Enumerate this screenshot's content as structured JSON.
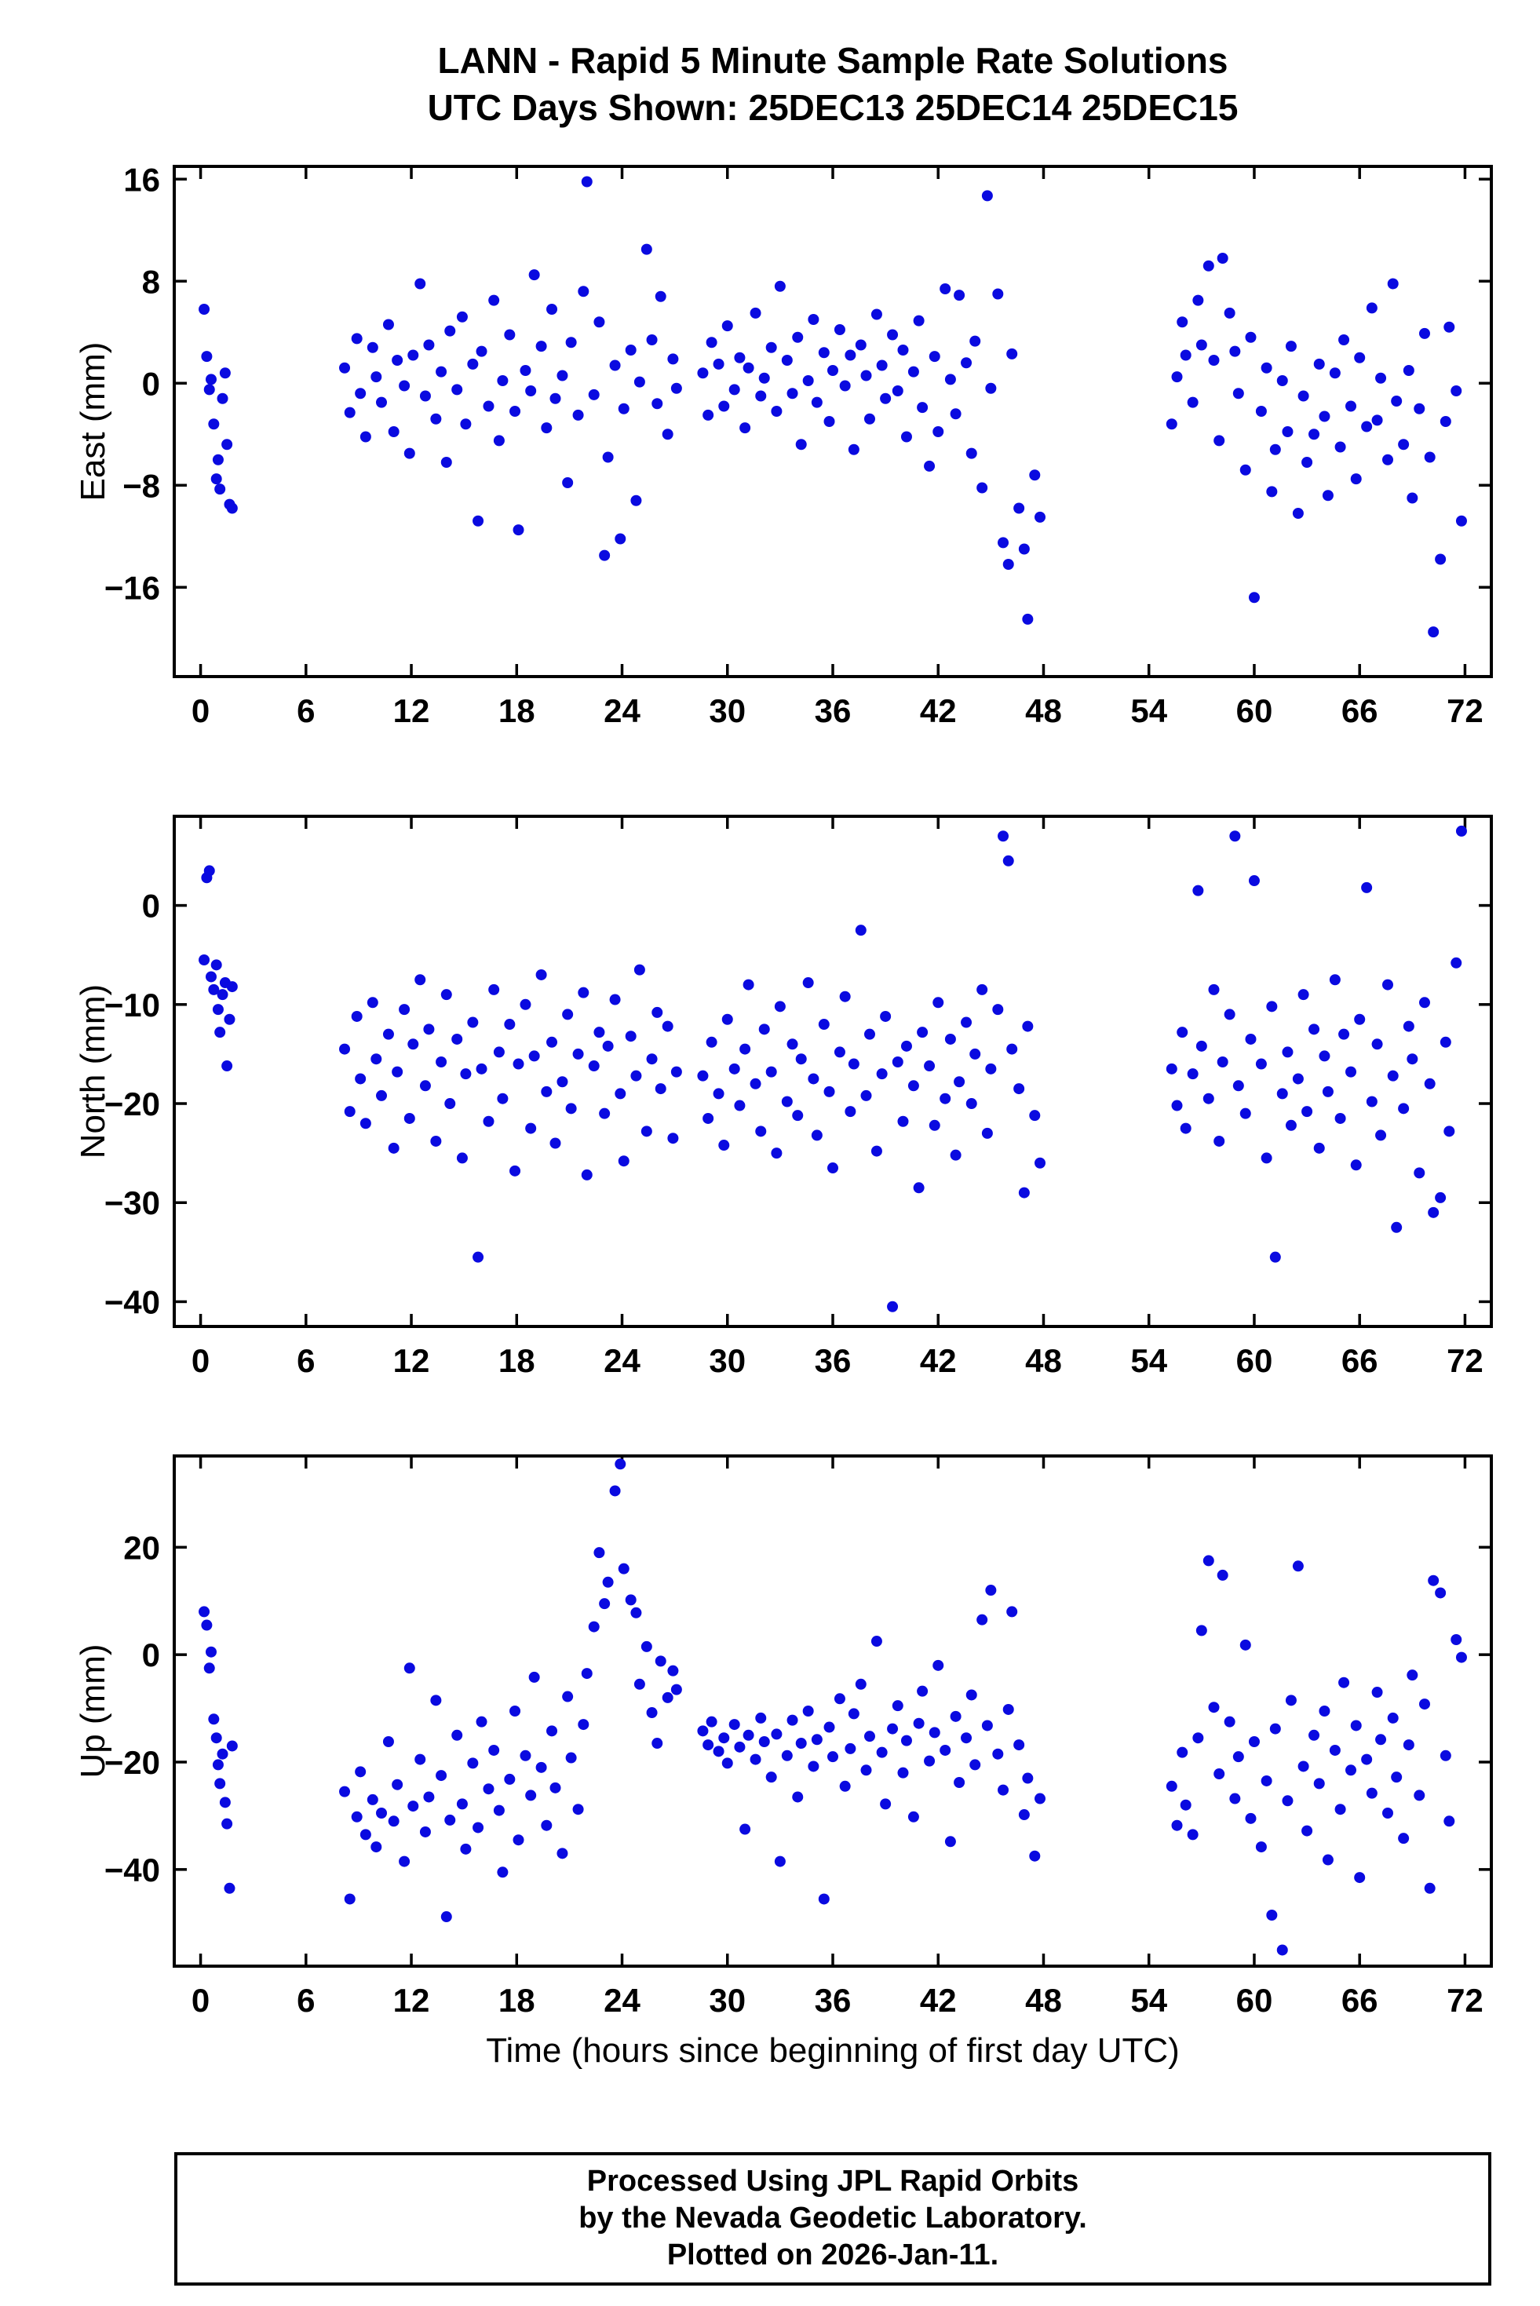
{
  "title": {
    "line1": "LANN - Rapid 5 Minute Sample Rate Solutions",
    "line2": "UTC Days Shown:  25DEC13 25DEC14 25DEC15"
  },
  "xlabel": "Time (hours since beginning of first day UTC)",
  "footer": {
    "line1": "Processed Using JPL Rapid Orbits",
    "line2": "by the Nevada Geodetic Laboratory.",
    "line3": "Plotted on 2026-Jan-11."
  },
  "colors": {
    "points": "#0a0ae0",
    "frame": "#000000",
    "background": "#ffffff"
  },
  "chart_data": {
    "type": "scatter",
    "title": "LANN - Rapid 5 Minute Sample Rate Solutions",
    "subtitle": "UTC Days Shown:  25DEC13 25DEC14 25DEC15",
    "xlabel": "Time (hours since beginning of first day UTC)",
    "xlim": [
      -1.5,
      73.5
    ],
    "xticks": [
      0,
      6,
      12,
      18,
      24,
      30,
      36,
      42,
      48,
      54,
      60,
      66,
      72
    ],
    "grid": false,
    "legend": "none",
    "marker": "circle",
    "x": [
      0.2,
      0.35,
      0.5,
      0.6,
      0.75,
      0.9,
      1.0,
      1.1,
      1.25,
      1.4,
      1.5,
      1.65,
      1.8,
      8.2,
      8.5,
      8.9,
      9.1,
      9.4,
      9.8,
      10.0,
      10.3,
      10.7,
      11.0,
      11.2,
      11.6,
      11.9,
      12.1,
      12.5,
      12.8,
      13.0,
      13.4,
      13.7,
      14.0,
      14.2,
      14.6,
      14.9,
      15.1,
      15.5,
      15.8,
      16.0,
      16.4,
      16.7,
      17.0,
      17.2,
      17.6,
      17.9,
      18.1,
      18.5,
      18.8,
      19.0,
      19.4,
      19.7,
      20.0,
      20.2,
      20.6,
      20.9,
      21.1,
      21.5,
      21.8,
      22.0,
      22.4,
      22.7,
      23.0,
      23.2,
      23.6,
      23.9,
      24.1,
      24.5,
      24.8,
      25.0,
      25.4,
      25.7,
      26.0,
      26.2,
      26.6,
      26.9,
      27.1,
      28.6,
      28.9,
      29.1,
      29.5,
      29.8,
      30.0,
      30.4,
      30.7,
      31.0,
      31.2,
      31.6,
      31.9,
      32.1,
      32.5,
      32.8,
      33.0,
      33.4,
      33.7,
      34.0,
      34.2,
      34.6,
      34.9,
      35.1,
      35.5,
      35.8,
      36.0,
      36.4,
      36.7,
      37.0,
      37.2,
      37.6,
      37.9,
      38.1,
      38.5,
      38.8,
      39.0,
      39.4,
      39.7,
      40.0,
      40.2,
      40.6,
      40.9,
      41.1,
      41.5,
      41.8,
      42.0,
      42.4,
      42.7,
      43.0,
      43.2,
      43.6,
      43.9,
      44.1,
      44.5,
      44.8,
      45.0,
      45.4,
      45.7,
      46.0,
      46.2,
      46.6,
      46.9,
      47.1,
      47.5,
      47.8,
      55.3,
      55.6,
      55.9,
      56.1,
      56.5,
      56.8,
      57.0,
      57.4,
      57.7,
      58.0,
      58.2,
      58.6,
      58.9,
      59.1,
      59.5,
      59.8,
      60.0,
      60.4,
      60.7,
      61.0,
      61.2,
      61.6,
      61.9,
      62.1,
      62.5,
      62.8,
      63.0,
      63.4,
      63.7,
      64.0,
      64.2,
      64.6,
      64.9,
      65.1,
      65.5,
      65.8,
      66.0,
      66.4,
      66.7,
      67.0,
      67.2,
      67.6,
      67.9,
      68.1,
      68.5,
      68.8,
      69.0,
      69.4,
      69.7,
      70.0,
      70.2,
      70.6,
      70.9,
      71.1,
      71.5,
      71.8
    ],
    "series": [
      {
        "name": "East",
        "ylabel": "East (mm)",
        "ylim": [
          -23,
          17
        ],
        "yticks": [
          -16,
          -8,
          0,
          8,
          16
        ],
        "values": [
          5.8,
          2.1,
          -0.5,
          0.3,
          -3.2,
          -7.5,
          -6.0,
          -8.3,
          -1.2,
          0.8,
          -4.8,
          -9.5,
          -9.8,
          1.2,
          -2.3,
          3.5,
          -0.8,
          -4.2,
          2.8,
          0.5,
          -1.5,
          4.6,
          -3.8,
          1.8,
          -0.2,
          -5.5,
          2.2,
          7.8,
          -1.0,
          3.0,
          -2.8,
          0.9,
          -6.2,
          4.1,
          -0.5,
          5.2,
          -3.2,
          1.5,
          -10.8,
          2.5,
          -1.8,
          6.5,
          -4.5,
          0.2,
          3.8,
          -2.2,
          -11.5,
          1.0,
          -0.6,
          8.5,
          2.9,
          -3.5,
          5.8,
          -1.2,
          0.6,
          -7.8,
          3.2,
          -2.5,
          7.2,
          15.8,
          -0.9,
          4.8,
          -13.5,
          -5.8,
          1.4,
          -12.2,
          -2.0,
          2.6,
          -9.2,
          0.1,
          10.5,
          3.4,
          -1.6,
          6.8,
          -4.0,
          1.9,
          -0.4,
          0.8,
          -2.5,
          3.2,
          1.5,
          -1.8,
          4.5,
          -0.5,
          2.0,
          -3.5,
          1.2,
          5.5,
          -1.0,
          0.4,
          2.8,
          -2.2,
          7.6,
          1.8,
          -0.8,
          3.6,
          -4.8,
          0.2,
          5.0,
          -1.5,
          2.4,
          -3.0,
          1.0,
          4.2,
          -0.2,
          2.2,
          -5.2,
          3.0,
          0.6,
          -2.8,
          5.4,
          1.4,
          -1.2,
          3.8,
          -0.6,
          2.6,
          -4.2,
          0.9,
          4.9,
          -1.9,
          -6.5,
          2.1,
          -3.8,
          7.4,
          0.3,
          -2.4,
          6.9,
          1.6,
          -5.5,
          3.3,
          -8.2,
          14.7,
          -0.4,
          7.0,
          -12.5,
          -14.2,
          2.3,
          -9.8,
          -13.0,
          -18.5,
          -7.2,
          -10.5,
          -3.2,
          0.5,
          4.8,
          2.2,
          -1.5,
          6.5,
          3.0,
          9.2,
          1.8,
          -4.5,
          9.8,
          5.5,
          2.5,
          -0.8,
          -6.8,
          3.6,
          -16.8,
          -2.2,
          1.2,
          -8.5,
          -5.2,
          0.2,
          -3.8,
          2.9,
          -10.2,
          -1.0,
          -6.2,
          -4.0,
          1.5,
          -2.6,
          -8.8,
          0.8,
          -5.0,
          3.4,
          -1.8,
          -7.5,
          2.0,
          -3.4,
          5.9,
          -2.9,
          0.4,
          -6.0,
          7.8,
          -1.4,
          -4.8,
          1.0,
          -9.0,
          -2.0,
          3.9,
          -5.8,
          -19.5,
          -13.8,
          -3.0,
          4.4,
          -0.6,
          -10.8
        ]
      },
      {
        "name": "North",
        "ylabel": "North (mm)",
        "ylim": [
          -42.5,
          9
        ],
        "yticks": [
          -40,
          -30,
          -20,
          -10,
          0
        ],
        "values": [
          -5.5,
          2.8,
          3.5,
          -7.2,
          -8.5,
          -6.0,
          -10.5,
          -12.8,
          -9.0,
          -7.8,
          -16.2,
          -11.5,
          -8.2,
          -14.5,
          -20.8,
          -11.2,
          -17.5,
          -22.0,
          -9.8,
          -15.5,
          -19.2,
          -13.0,
          -24.5,
          -16.8,
          -10.5,
          -21.5,
          -14.0,
          -7.5,
          -18.2,
          -12.5,
          -23.8,
          -15.8,
          -9.0,
          -20.0,
          -13.5,
          -25.5,
          -17.0,
          -11.8,
          -35.5,
          -16.5,
          -21.8,
          -8.5,
          -14.8,
          -19.5,
          -12.0,
          -26.8,
          -16.0,
          -10.0,
          -22.5,
          -15.2,
          -7.0,
          -18.8,
          -13.8,
          -24.0,
          -17.8,
          -11.0,
          -20.5,
          -15.0,
          -8.8,
          -27.2,
          -16.2,
          -12.8,
          -21.0,
          -14.2,
          -9.5,
          -19.0,
          -25.8,
          -13.2,
          -17.2,
          -6.5,
          -22.8,
          -15.5,
          -10.8,
          -18.5,
          -12.2,
          -23.5,
          -16.8,
          -17.2,
          -21.5,
          -13.8,
          -19.0,
          -24.2,
          -11.5,
          -16.5,
          -20.2,
          -14.5,
          -8.0,
          -18.0,
          -22.8,
          -12.5,
          -16.8,
          -25.0,
          -10.2,
          -19.8,
          -14.0,
          -21.2,
          -15.5,
          -7.8,
          -17.5,
          -23.2,
          -12.0,
          -18.8,
          -26.5,
          -14.8,
          -9.2,
          -20.8,
          -16.0,
          -2.5,
          -19.2,
          -13.0,
          -24.8,
          -17.0,
          -11.2,
          -40.5,
          -15.8,
          -21.8,
          -14.2,
          -18.2,
          -28.5,
          -12.8,
          -16.2,
          -22.2,
          -9.8,
          -19.5,
          -13.5,
          -25.2,
          -17.8,
          -11.8,
          -20.0,
          -15.0,
          -8.5,
          -23.0,
          -16.5,
          -10.5,
          7.0,
          4.5,
          -14.5,
          -18.5,
          -29.0,
          -12.2,
          -21.2,
          -26.0,
          -16.5,
          -20.2,
          -12.8,
          -22.5,
          -17.0,
          1.5,
          -14.2,
          -19.5,
          -8.5,
          -23.8,
          -15.8,
          -11.0,
          7.0,
          -18.2,
          -21.0,
          -13.5,
          2.5,
          -16.0,
          -25.5,
          -10.2,
          -35.5,
          -19.0,
          -14.8,
          -22.2,
          -17.5,
          -9.0,
          -20.8,
          -12.5,
          -24.5,
          -15.2,
          -18.8,
          -7.5,
          -21.5,
          -13.0,
          -16.8,
          -26.2,
          -11.5,
          1.8,
          -19.8,
          -14.0,
          -23.2,
          -8.0,
          -17.2,
          -32.5,
          -20.5,
          -12.2,
          -15.5,
          -27.0,
          -9.8,
          -18.0,
          -31.0,
          -29.5,
          -13.8,
          -22.8,
          -5.8,
          7.5
        ]
      },
      {
        "name": "Up",
        "ylabel": "Up (mm)",
        "ylim": [
          -58,
          37
        ],
        "yticks": [
          -40,
          -20,
          0,
          20
        ],
        "values": [
          8.0,
          5.5,
          -2.5,
          0.5,
          -12.0,
          -15.5,
          -20.5,
          -24.0,
          -18.5,
          -27.5,
          -31.5,
          -43.5,
          -17.0,
          -25.5,
          -45.5,
          -30.2,
          -21.8,
          -33.5,
          -27.0,
          -35.8,
          -29.5,
          -16.2,
          -31.0,
          -24.2,
          -38.5,
          -2.5,
          -28.2,
          -19.5,
          -33.0,
          -26.5,
          -8.5,
          -22.5,
          -48.8,
          -30.8,
          -15.0,
          -27.8,
          -36.2,
          -20.2,
          -32.2,
          -12.5,
          -25.0,
          -17.8,
          -29.0,
          -40.5,
          -23.2,
          -10.5,
          -34.5,
          -18.8,
          -26.2,
          -4.2,
          -21.0,
          -31.8,
          -14.2,
          -24.8,
          -37.0,
          -7.8,
          -19.2,
          -28.8,
          -13.0,
          -3.5,
          5.2,
          19.0,
          9.5,
          13.5,
          30.5,
          35.5,
          16.0,
          10.2,
          7.8,
          -5.5,
          1.5,
          -10.8,
          -16.5,
          -1.2,
          -8.0,
          -3.0,
          -6.5,
          -14.2,
          -16.8,
          -12.5,
          -18.0,
          -15.5,
          -20.2,
          -13.0,
          -17.2,
          -32.5,
          -15.0,
          -19.5,
          -11.8,
          -16.2,
          -22.8,
          -14.8,
          -38.5,
          -18.8,
          -12.2,
          -26.5,
          -16.5,
          -10.5,
          -20.8,
          -15.8,
          -45.5,
          -13.5,
          -19.0,
          -8.2,
          -24.5,
          -17.5,
          -11.0,
          -5.5,
          -21.5,
          -15.2,
          2.5,
          -18.2,
          -27.8,
          -13.8,
          -9.5,
          -22.0,
          -16.0,
          -30.2,
          -12.8,
          -6.8,
          -19.8,
          -14.5,
          -2.0,
          -17.8,
          -34.8,
          -11.5,
          -23.8,
          -15.5,
          -7.5,
          -20.5,
          6.5,
          -13.2,
          12.0,
          -18.5,
          -25.2,
          -10.2,
          8.0,
          -16.8,
          -29.8,
          -23.0,
          -37.5,
          -26.8,
          -24.5,
          -31.8,
          -18.2,
          -28.0,
          -33.5,
          -15.5,
          4.5,
          17.5,
          -9.8,
          -22.2,
          14.8,
          -12.5,
          -26.8,
          -19.0,
          1.8,
          -30.5,
          -16.2,
          -35.8,
          -23.5,
          -48.5,
          -13.8,
          -55.0,
          -27.2,
          -8.5,
          16.5,
          -20.8,
          -32.8,
          -15.0,
          -24.0,
          -10.5,
          -38.2,
          -17.8,
          -28.8,
          -5.2,
          -21.5,
          -13.2,
          -41.5,
          -19.5,
          -25.8,
          -7.0,
          -15.8,
          -29.5,
          -11.8,
          -22.8,
          -34.2,
          -16.8,
          -3.8,
          -26.2,
          -9.2,
          -43.5,
          13.8,
          11.5,
          -18.8,
          -31.0,
          2.8,
          -0.5
        ]
      }
    ]
  }
}
